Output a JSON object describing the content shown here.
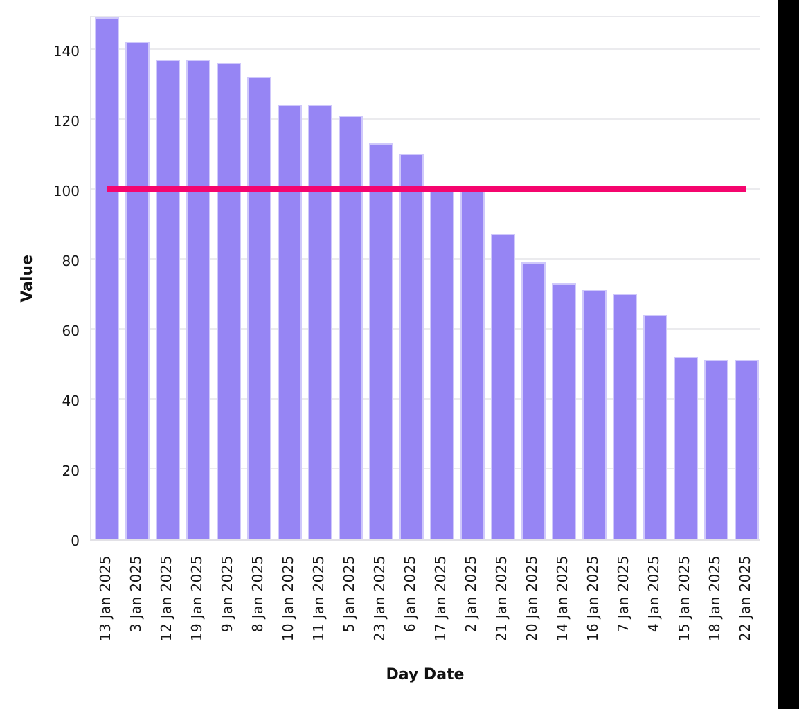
{
  "chart_data": {
    "type": "bar",
    "title": "",
    "xlabel": "Day Date",
    "ylabel": "Value",
    "categories": [
      "13 Jan 2025",
      "3 Jan 2025",
      "12 Jan 2025",
      "19 Jan 2025",
      "9 Jan 2025",
      "8 Jan 2025",
      "10 Jan 2025",
      "11 Jan 2025",
      "5 Jan 2025",
      "23 Jan 2025",
      "6 Jan 2025",
      "17 Jan 2025",
      "2 Jan 2025",
      "21 Jan 2025",
      "20 Jan 2025",
      "14 Jan 2025",
      "16 Jan 2025",
      "7 Jan 2025",
      "4 Jan 2025",
      "15 Jan 2025",
      "18 Jan 2025",
      "22 Jan 2025"
    ],
    "values": [
      149,
      142,
      137,
      137,
      136,
      132,
      124,
      124,
      121,
      113,
      110,
      101,
      100,
      87,
      79,
      73,
      71,
      70,
      64,
      52,
      51,
      51
    ],
    "sort_order": "descending by value",
    "yticks": [
      0,
      20,
      40,
      60,
      80,
      100,
      120,
      140
    ],
    "ylim": [
      0,
      150
    ],
    "grid": true,
    "legend": "none",
    "reference_line": {
      "value": 101,
      "color": "#F5056E",
      "description": "horizontal line spanning from first bar center to last bar center"
    },
    "colors": {
      "bar_fill": "#9685F4",
      "bar_border": "#CFC8FB",
      "gridline": "#EBEBEE",
      "axis_line": "#E2E1E6",
      "tick_text": "#161616",
      "title_text": "#111111"
    }
  },
  "page": {
    "background": "#FFFFFF",
    "right_edge_strip_color": "#000000"
  }
}
